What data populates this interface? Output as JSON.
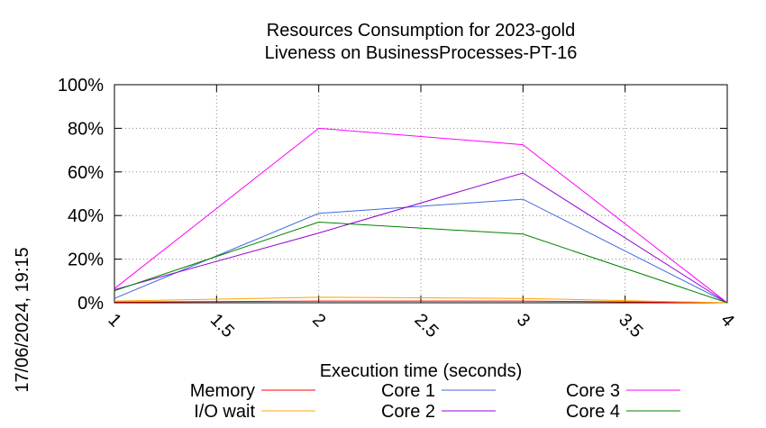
{
  "side_label": "17/06/2024, 19:15",
  "chart_data": {
    "type": "line",
    "title": "Resources Consumption for 2023-gold",
    "subtitle": "Liveness on BusinessProcesses-PT-16",
    "xlabel": "Execution time (seconds)",
    "ylabel": "",
    "xlim": [
      1,
      4
    ],
    "ylim": [
      0,
      100
    ],
    "x_ticks": [
      "1",
      "1.5",
      "2",
      "2.5",
      "3",
      "3.5",
      "4"
    ],
    "y_ticks": [
      "0%",
      "20%",
      "40%",
      "60%",
      "80%",
      "100%"
    ],
    "grid": true,
    "legend_position": "bottom",
    "x": [
      1,
      2,
      3,
      4
    ],
    "series": [
      {
        "name": "Memory",
        "color": "#ff0000",
        "values": [
          0.3,
          0.8,
          0.8,
          0.0
        ]
      },
      {
        "name": "I/O wait",
        "color": "#ffa500",
        "values": [
          0.8,
          2.5,
          2.0,
          0.0
        ]
      },
      {
        "name": "Core 1",
        "color": "#4169e1",
        "values": [
          2.0,
          41.0,
          47.5,
          0.0
        ]
      },
      {
        "name": "Core 2",
        "color": "#9400d3",
        "values": [
          6.0,
          32.0,
          59.5,
          0.0
        ]
      },
      {
        "name": "Core 3",
        "color": "#ff00ff",
        "values": [
          6.5,
          80.0,
          72.5,
          0.0
        ]
      },
      {
        "name": "Core 4",
        "color": "#008000",
        "values": [
          5.5,
          37.0,
          31.5,
          0.0
        ]
      }
    ]
  }
}
